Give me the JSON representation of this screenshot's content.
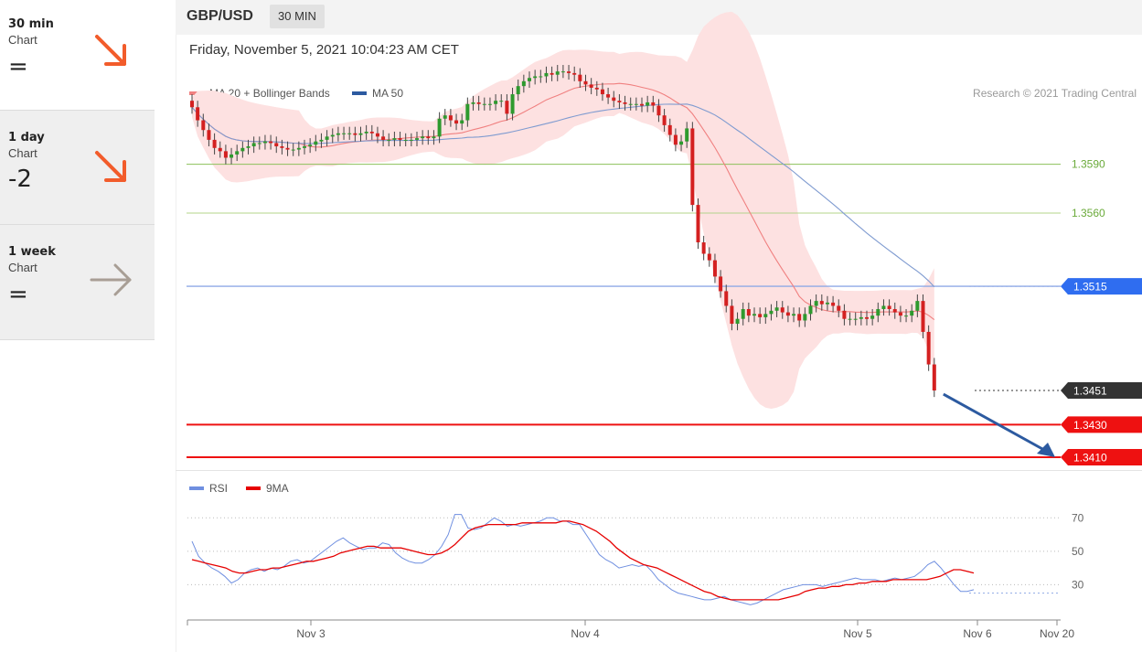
{
  "sidebar": {
    "items": [
      {
        "period": "30 min",
        "kind": "Chart",
        "score": "=",
        "arrow": "down-right-arrow-icon",
        "color": "#f25c2b"
      },
      {
        "period": "1 day",
        "kind": "Chart",
        "score": "-2",
        "arrow": "down-right-arrow-icon",
        "color": "#f25c2b"
      },
      {
        "period": "1 week",
        "kind": "Chart",
        "score": "=",
        "arrow": "right-arrow-icon",
        "color": "#a89e95"
      }
    ]
  },
  "header": {
    "symbol": "GBP/USD",
    "timeframe": "30 MIN"
  },
  "datetime": "Friday, November 5, 2021 10:04:23 AM CET",
  "legend": {
    "ma20": "MA 20 + Bollinger Bands",
    "ma50": "MA 50",
    "ma20_color": "#f08080",
    "ma50_color": "#2c5aa0"
  },
  "copyright": "Research © 2021 Trading Central",
  "rsi_legend": {
    "rsi": "RSI",
    "ma": "9MA",
    "rsi_color": "#6f8fe0",
    "ma_color": "#e60000"
  },
  "chart_data": [
    {
      "type": "candlestick",
      "title": "GBP/USD",
      "levels": [
        {
          "value": 1.359,
          "label": "1.3590",
          "color": "#8cc05a",
          "kind": "resistance-line"
        },
        {
          "value": 1.356,
          "label": "1.3560",
          "color": "#b4d48a",
          "kind": "resistance-line"
        },
        {
          "value": 1.3515,
          "label": "1.3515",
          "color": "#2f6df0",
          "kind": "pivot"
        },
        {
          "value": 1.3451,
          "label": "1.3451",
          "color": "#333333",
          "kind": "last-price"
        },
        {
          "value": 1.343,
          "label": "1.3430",
          "color": "#ee1111",
          "kind": "target"
        },
        {
          "value": 1.341,
          "label": "1.3410",
          "color": "#ee1111",
          "kind": "target"
        }
      ],
      "x_ticks": [
        {
          "label": "Nov 3",
          "index": 20
        },
        {
          "label": "Nov 4",
          "index": 68
        },
        {
          "label": "Nov 5",
          "index": 116
        },
        {
          "label": "Nov 6",
          "index": 137
        },
        {
          "label": "Nov 20",
          "index": 152
        }
      ],
      "ylim": [
        1.341,
        1.366
      ],
      "closes": [
        1.3625,
        1.3617,
        1.3611,
        1.3605,
        1.36,
        1.3598,
        1.3594,
        1.3596,
        1.3598,
        1.36,
        1.3601,
        1.3603,
        1.3603,
        1.3604,
        1.3603,
        1.3601,
        1.36,
        1.3599,
        1.3599,
        1.36,
        1.3601,
        1.3602,
        1.3604,
        1.3605,
        1.3607,
        1.3608,
        1.3609,
        1.3609,
        1.3609,
        1.3608,
        1.3609,
        1.361,
        1.3609,
        1.3607,
        1.3605,
        1.3605,
        1.3606,
        1.3605,
        1.3605,
        1.3605,
        1.3606,
        1.3607,
        1.3606,
        1.3607,
        1.3618,
        1.362,
        1.3617,
        1.3615,
        1.3617,
        1.3627,
        1.3628,
        1.3627,
        1.3627,
        1.3627,
        1.3629,
        1.3629,
        1.3621,
        1.3633,
        1.3638,
        1.3641,
        1.3643,
        1.3644,
        1.3644,
        1.3646,
        1.3645,
        1.3647,
        1.3647,
        1.3646,
        1.3645,
        1.3641,
        1.3639,
        1.3637,
        1.3636,
        1.3633,
        1.3631,
        1.3629,
        1.3628,
        1.3627,
        1.3627,
        1.3627,
        1.3626,
        1.3628,
        1.3626,
        1.362,
        1.3614,
        1.3608,
        1.3602,
        1.3604,
        1.3612,
        1.3565,
        1.3542,
        1.3535,
        1.3531,
        1.3521,
        1.3512,
        1.3503,
        1.3492,
        1.3495,
        1.3501,
        1.3497,
        1.3498,
        1.3496,
        1.3498,
        1.35,
        1.3502,
        1.3499,
        1.3497,
        1.3498,
        1.3494,
        1.3498,
        1.3503,
        1.3506,
        1.3504,
        1.3505,
        1.3503,
        1.35,
        1.3495,
        1.3495,
        1.3495,
        1.3496,
        1.3495,
        1.3497,
        1.3501,
        1.3503,
        1.3501,
        1.3499,
        1.3497,
        1.3497,
        1.35,
        1.3506,
        1.3487,
        1.3467,
        1.3451
      ],
      "rsi": {
        "series": [
          {
            "name": "RSI",
            "values": [
              56,
              47,
              43,
              40,
              38,
              35,
              31,
              33,
              37,
              39,
              40,
              38,
              40,
              39,
              41,
              44,
              45,
              43,
              44,
              47,
              50,
              53,
              56,
              58,
              55,
              53,
              51,
              52,
              52,
              55,
              54,
              49,
              46,
              44,
              43,
              43,
              45,
              48,
              53,
              60,
              72,
              72,
              64,
              63,
              64,
              67,
              70,
              68,
              65,
              66,
              65,
              66,
              67,
              68,
              70,
              70,
              68,
              68,
              66,
              66,
              60,
              54,
              48,
              45,
              43,
              40,
              41,
              42,
              41,
              42,
              38,
              33,
              30,
              27,
              25,
              24,
              23,
              22,
              21,
              21,
              22,
              23,
              21,
              20,
              19,
              18,
              19,
              21,
              23,
              25,
              27,
              28,
              29,
              30,
              30,
              30,
              29,
              30,
              31,
              32,
              33,
              34,
              33,
              33,
              33,
              32,
              33,
              34,
              33,
              34,
              35,
              38,
              42,
              44,
              40,
              35,
              30,
              26,
              26,
              27
            ],
            "color": "#6f8fe0"
          },
          {
            "name": "9MA",
            "values": [
              45,
              44,
              43,
              42,
              41,
              40,
              38,
              37,
              37,
              38,
              39,
              39,
              40,
              40,
              41,
              42,
              43,
              44,
              44,
              45,
              46,
              47,
              49,
              50,
              51,
              52,
              53,
              53,
              52,
              52,
              52,
              52,
              51,
              50,
              49,
              48,
              48,
              49,
              51,
              54,
              58,
              62,
              64,
              65,
              66,
              66,
              66,
              66,
              66,
              67,
              67,
              67,
              67,
              67,
              67,
              68,
              68,
              67,
              66,
              64,
              62,
              59,
              56,
              52,
              49,
              46,
              44,
              42,
              41,
              40,
              38,
              36,
              34,
              32,
              30,
              28,
              26,
              25,
              23,
              22,
              21,
              21,
              21,
              21,
              21,
              21,
              21,
              21,
              22,
              23,
              24,
              26,
              27,
              28,
              28,
              29,
              29,
              30,
              30,
              31,
              31,
              32,
              32,
              32,
              33,
              33,
              33,
              33,
              33,
              33,
              34,
              35,
              37,
              39,
              39,
              38,
              37
            ],
            "color": "#e60000"
          }
        ],
        "ticks": [
          70,
          50,
          30
        ],
        "ylim": [
          10,
          80
        ]
      }
    }
  ]
}
